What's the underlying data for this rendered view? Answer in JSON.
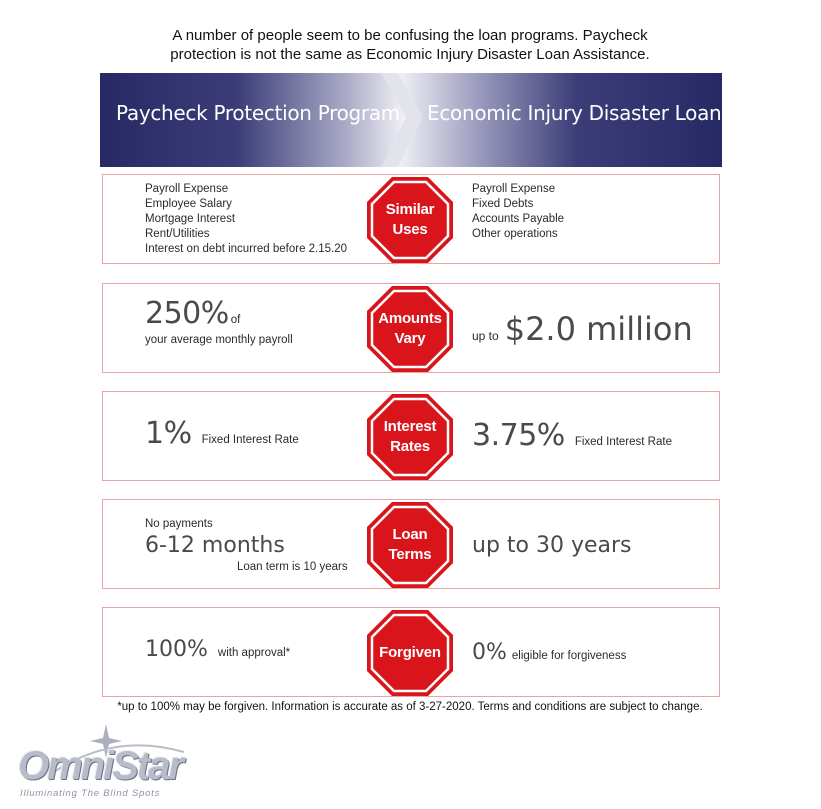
{
  "intro": {
    "line1": "A number of people seem to be confusing the loan programs.  Paycheck",
    "line2": "protection is not the same as Economic Injury Disaster Loan Assistance."
  },
  "banner": {
    "left": "Paycheck Protection Program",
    "right": "Economic Injury Disaster Loan",
    "color": "#272965"
  },
  "stop_color": "#d9141b",
  "rows": [
    {
      "sign": "Similar\nUses",
      "left_items": [
        "Payroll Expense",
        "Employee Salary",
        "Mortgage Interest",
        "Rent/Utilities",
        "Interest on debt incurred before 2.15.20"
      ],
      "right_items": [
        "Payroll Expense",
        "Fixed Debts",
        "Accounts Payable",
        "Other operations"
      ]
    },
    {
      "sign": "Amounts\nVary",
      "left_big": "250%",
      "left_suffix": "of",
      "left_sub": "your average monthly payroll",
      "right_prefix": "up to",
      "right_big": "$2.0 million"
    },
    {
      "sign": "Interest\nRates",
      "left_big": "1%",
      "left_suffix": "Fixed Interest Rate",
      "right_big": "3.75%",
      "right_suffix": "Fixed Interest Rate"
    },
    {
      "sign": "Loan\nTerms",
      "left_top": "No payments",
      "left_big": "6-12 months",
      "left_bottom": "Loan term is 10 years",
      "right_big": "up to 30 years"
    },
    {
      "sign": "Forgiven",
      "left_big": "100%",
      "left_suffix": "with approval*",
      "right_big": "0%",
      "right_suffix": "eligible for forgiveness"
    }
  ],
  "footnote": "*up to 100% may be forgiven. Information is accurate as of 3-27-2020. Terms and conditions are subject to change.",
  "logo": {
    "name": "OmniStar",
    "tagline": "Illuminating The Blind Spots"
  }
}
